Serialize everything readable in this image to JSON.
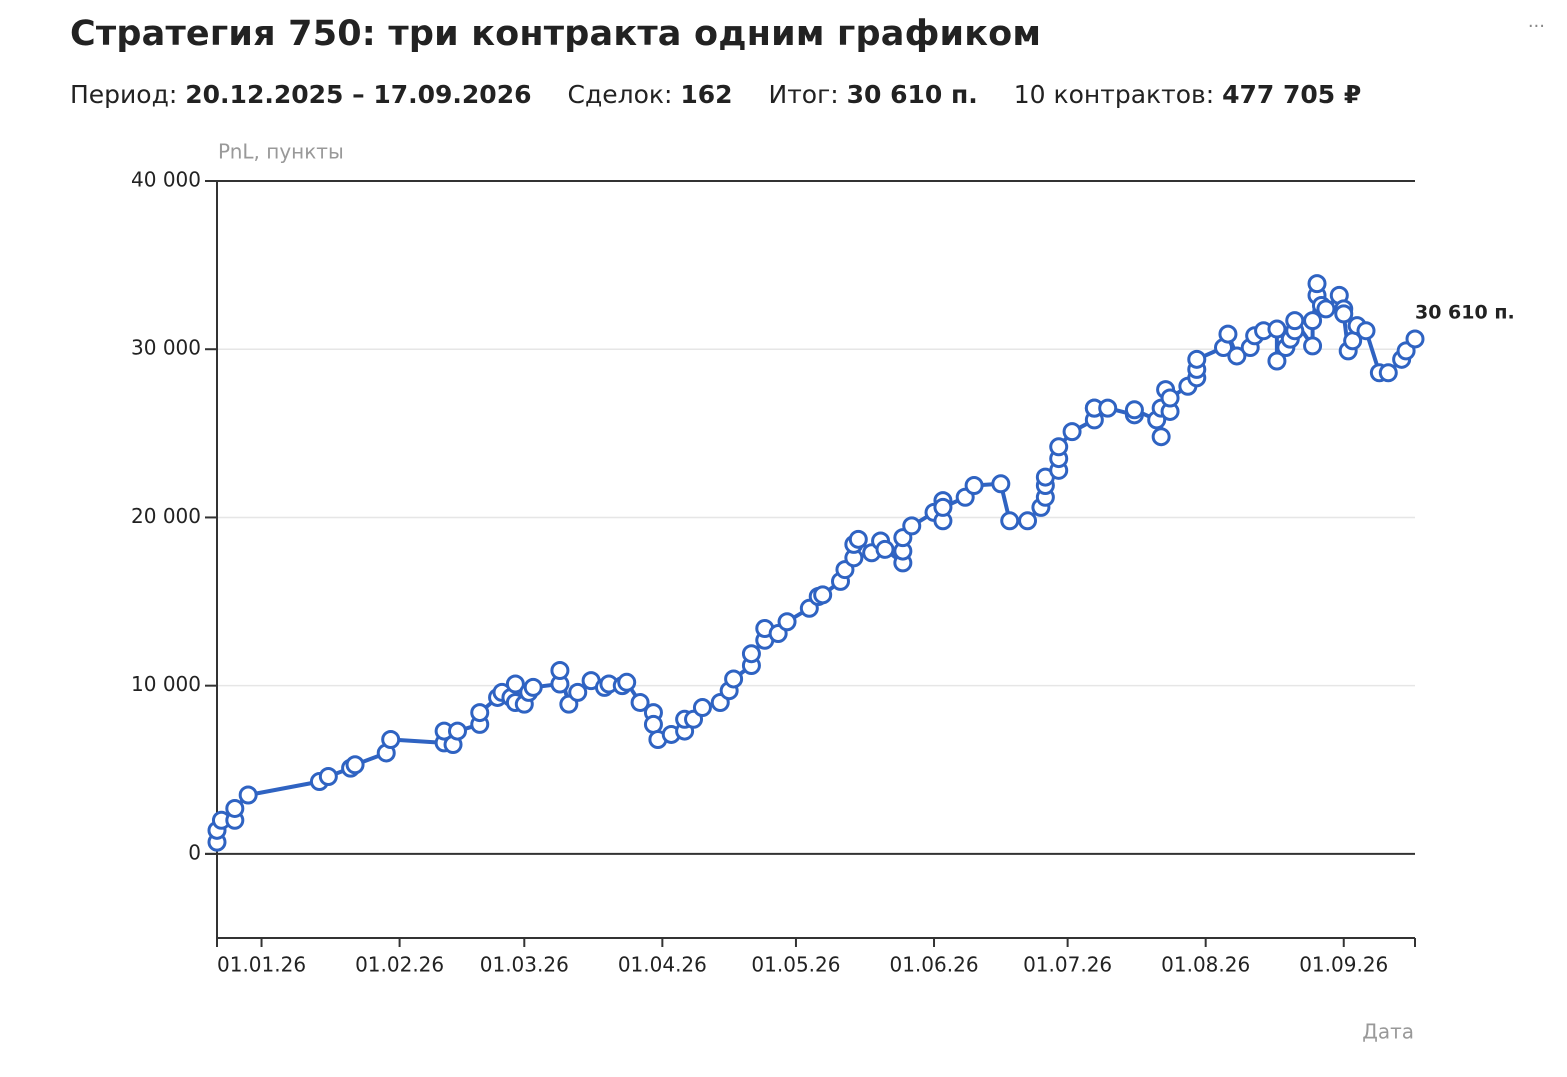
{
  "header": {
    "title": "Стратегия 750: три контракта одним графиком",
    "menu": "···",
    "stats": [
      {
        "label": "Период:",
        "value": "20.12.2025 – 17.09.2026"
      },
      {
        "label": "Сделок:",
        "value": "162"
      },
      {
        "label": "Итог:",
        "value": "30 610 п."
      },
      {
        "label": "10 контрактов:",
        "value": "477 705 ₽"
      }
    ]
  },
  "chart_data": {
    "type": "line",
    "y_label": "PnL, пункты",
    "x_label": "Дата",
    "color": "#2f63c2",
    "markers": true,
    "grid": true,
    "end_label": "30 610 п.",
    "xlim": [
      "2025-12-22",
      "2026-09-17"
    ],
    "xticks": [
      {
        "value": "2026-01-01",
        "label": "01.01.26"
      },
      {
        "value": "2026-02-01",
        "label": "01.02.26"
      },
      {
        "value": "2026-03-01",
        "label": "01.03.26"
      },
      {
        "value": "2026-04-01",
        "label": "01.04.26"
      },
      {
        "value": "2026-05-01",
        "label": "01.05.26"
      },
      {
        "value": "2026-06-01",
        "label": "01.06.26"
      },
      {
        "value": "2026-07-01",
        "label": "01.07.26"
      },
      {
        "value": "2026-08-01",
        "label": "01.08.26"
      },
      {
        "value": "2026-09-01",
        "label": "01.09.26"
      }
    ],
    "ylim": [
      -5000,
      40000
    ],
    "yticks": [
      0,
      {
        "value": 10000,
        "label": "10 000"
      },
      {
        "value": 20000,
        "label": "20 000"
      },
      {
        "value": 30000,
        "label": "30 000"
      },
      {
        "value": 40000,
        "label": "40 000"
      }
    ],
    "x": [
      "2025-12-22",
      "2025-12-22",
      "2025-12-23",
      "2025-12-26",
      "2025-12-26",
      "2025-12-29",
      "2026-01-14",
      "2026-01-16",
      "2026-01-21",
      "2026-01-22",
      "2026-01-29",
      "2026-01-30",
      "2026-02-11",
      "2026-02-11",
      "2026-02-13",
      "2026-02-14",
      "2026-02-19",
      "2026-02-19",
      "2026-02-23",
      "2026-02-24",
      "2026-02-26",
      "2026-02-27",
      "2026-02-27",
      "2026-03-01",
      "2026-03-02",
      "2026-03-03",
      "2026-03-09",
      "2026-03-09",
      "2026-03-11",
      "2026-03-13",
      "2026-03-16",
      "2026-03-19",
      "2026-03-20",
      "2026-03-23",
      "2026-03-24",
      "2026-03-27",
      "2026-03-30",
      "2026-03-30",
      "2026-03-31",
      "2026-04-03",
      "2026-04-06",
      "2026-04-06",
      "2026-04-08",
      "2026-04-10",
      "2026-04-14",
      "2026-04-16",
      "2026-04-17",
      "2026-04-21",
      "2026-04-21",
      "2026-04-24",
      "2026-04-24",
      "2026-04-27",
      "2026-04-29",
      "2026-05-04",
      "2026-05-06",
      "2026-05-07",
      "2026-05-11",
      "2026-05-12",
      "2026-05-14",
      "2026-05-14",
      "2026-05-15",
      "2026-05-18",
      "2026-05-20",
      "2026-05-21",
      "2026-05-25",
      "2026-05-25",
      "2026-05-25",
      "2026-05-27",
      "2026-06-01",
      "2026-06-03",
      "2026-06-03",
      "2026-06-03",
      "2026-06-08",
      "2026-06-10",
      "2026-06-16",
      "2026-06-18",
      "2026-06-22",
      "2026-06-25",
      "2026-06-26",
      "2026-06-26",
      "2026-06-26",
      "2026-06-29",
      "2026-06-29",
      "2026-06-29",
      "2026-07-02",
      "2026-07-07",
      "2026-07-07",
      "2026-07-07",
      "2026-07-10",
      "2026-07-16",
      "2026-07-16",
      "2026-07-21",
      "2026-07-22",
      "2026-07-22",
      "2026-07-23",
      "2026-07-24",
      "2026-07-24",
      "2026-07-28",
      "2026-07-30",
      "2026-07-30",
      "2026-07-30",
      "2026-08-05",
      "2026-08-06",
      "2026-08-08",
      "2026-08-11",
      "2026-08-12",
      "2026-08-14",
      "2026-08-17",
      "2026-08-17",
      "2026-08-19",
      "2026-08-20",
      "2026-08-21",
      "2026-08-21",
      "2026-08-25",
      "2026-08-25",
      "2026-08-26",
      "2026-08-26",
      "2026-08-27",
      "2026-08-28",
      "2026-08-31",
      "2026-09-01",
      "2026-09-01",
      "2026-09-02",
      "2026-09-03",
      "2026-09-04",
      "2026-09-06",
      "2026-09-09",
      "2026-09-11",
      "2026-09-14",
      "2026-09-15",
      "2026-09-17"
    ],
    "values": [
      700,
      1400,
      2000,
      2000,
      2700,
      3500,
      4300,
      4600,
      5100,
      5300,
      6000,
      6800,
      6600,
      7300,
      6500,
      7300,
      7700,
      8400,
      9300,
      9600,
      9300,
      10100,
      9000,
      8900,
      9600,
      9900,
      10100,
      10900,
      8900,
      9600,
      10300,
      9900,
      10100,
      10000,
      10200,
      9000,
      8400,
      7700,
      6800,
      7100,
      7300,
      8000,
      8000,
      8700,
      9000,
      9700,
      10400,
      11200,
      11900,
      12700,
      13400,
      13100,
      13800,
      14600,
      15300,
      15400,
      16200,
      16900,
      17600,
      18400,
      18700,
      17900,
      18600,
      18100,
      17300,
      18000,
      18800,
      19500,
      20300,
      19800,
      21000,
      20600,
      21200,
      21900,
      22000,
      19800,
      19800,
      20600,
      21200,
      21900,
      22400,
      22800,
      23500,
      24200,
      25100,
      25800,
      26500,
      26500,
      26500,
      26100,
      26400,
      25800,
      24800,
      26500,
      27600,
      26300,
      27100,
      27800,
      28300,
      28800,
      29400,
      30100,
      30900,
      29600,
      30100,
      30800,
      31100,
      31200,
      29300,
      30100,
      30600,
      31100,
      31700,
      30200,
      31700,
      33200,
      33900,
      32600,
      32400,
      33200,
      32400,
      32100,
      29900,
      30500,
      31400,
      31100,
      28600,
      28600,
      29400,
      29900,
      30610
    ]
  }
}
